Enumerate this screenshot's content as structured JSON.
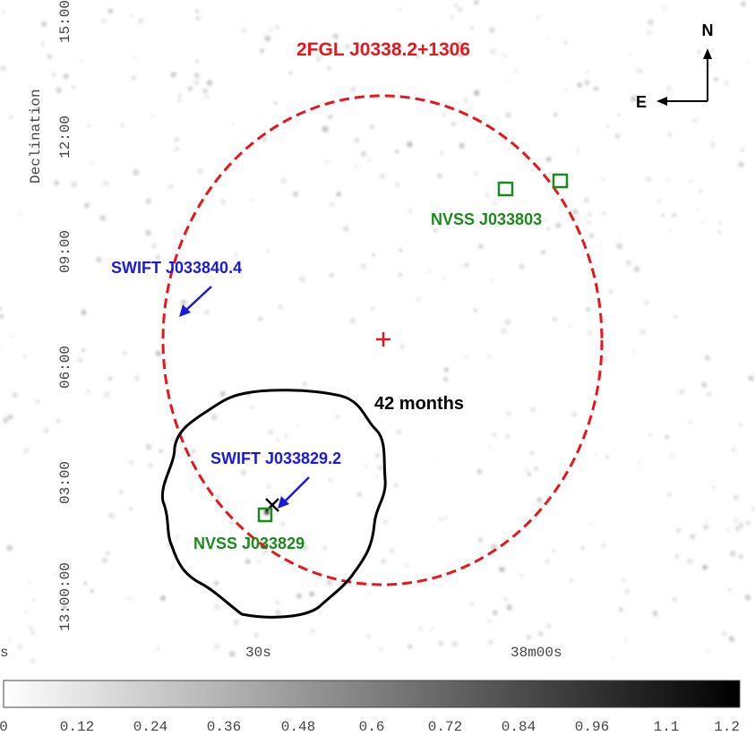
{
  "title": "2FGL J0338.2+1306",
  "axis": {
    "ylabel": "Declination",
    "y_ticks": [
      "15:00",
      "12:00",
      "09:00",
      "06:00",
      "03:00",
      "13:00:00"
    ],
    "x_ticks": [
      "s",
      "30s",
      "38m00s"
    ]
  },
  "compass": {
    "north": "N",
    "east": "E"
  },
  "labels": {
    "swift_1": "SWIFT J033840.4",
    "swift_2": "SWIFT J033829.2",
    "nvss_1": "NVSS J033803",
    "nvss_2": "NVSS J033829",
    "exposure": "42 months"
  },
  "colorbar": {
    "ticks": [
      "0",
      "0.12",
      "0.24",
      "0.36",
      "0.48",
      "0.6",
      "0.72",
      "0.84",
      "0.96",
      "1.1",
      "1.2"
    ]
  },
  "colors": {
    "fermi_ellipse": "#e8161b",
    "swift": "#1a1adc",
    "nvss": "#1a8a1a",
    "contour": "#000000"
  }
}
